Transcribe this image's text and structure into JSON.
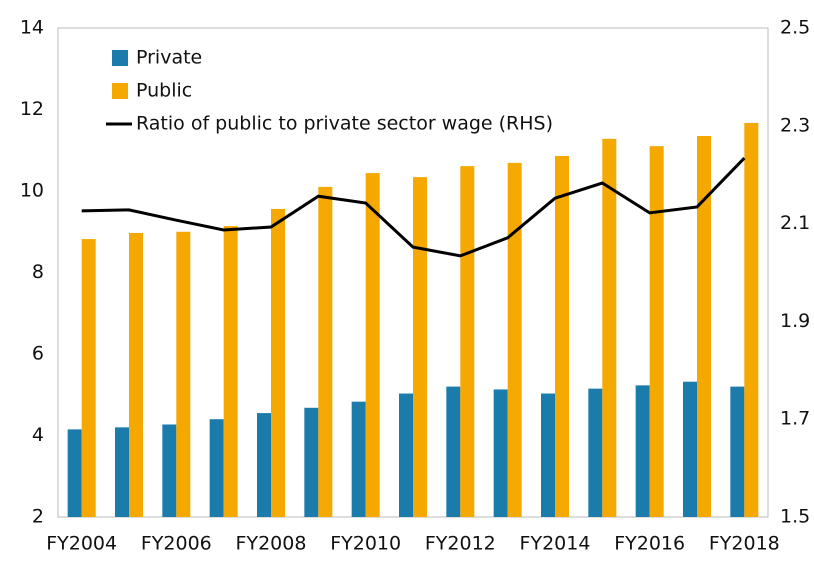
{
  "chart_data": {
    "type": "bar",
    "categories": [
      "FY2004",
      null,
      "FY2006",
      null,
      "FY2008",
      null,
      "FY2010",
      null,
      "FY2012",
      null,
      "FY2014",
      null,
      "FY2016",
      null,
      "FY2018"
    ],
    "series": [
      {
        "name": "Private",
        "color": "#1b7bab",
        "type": "bar",
        "values": [
          4.15,
          4.2,
          4.27,
          4.4,
          4.55,
          4.68,
          4.83,
          5.03,
          5.2,
          5.13,
          5.03,
          5.15,
          5.23,
          5.32,
          5.2
        ]
      },
      {
        "name": "Public",
        "color": "#f5a800",
        "type": "bar",
        "values": [
          8.82,
          8.97,
          9.0,
          9.14,
          9.56,
          10.1,
          10.44,
          10.34,
          10.61,
          10.69,
          10.86,
          11.28,
          11.1,
          11.35,
          11.67
        ]
      },
      {
        "name": "Ratio of public to private sector wage (RHS)",
        "color": "#000000",
        "type": "line",
        "axis": "y2",
        "values": [
          2.126,
          2.128,
          2.107,
          2.087,
          2.093,
          2.156,
          2.142,
          2.052,
          2.034,
          2.071,
          2.152,
          2.183,
          2.122,
          2.134,
          2.234
        ]
      }
    ],
    "ylim": [
      2,
      14
    ],
    "yticks": [
      2,
      4,
      6,
      8,
      10,
      12,
      14
    ],
    "y2lim": [
      1.5,
      2.5
    ],
    "y2ticks": [
      1.5,
      1.7,
      1.9,
      2.1,
      2.3,
      2.5
    ],
    "grid": false,
    "legend": "upper left"
  }
}
